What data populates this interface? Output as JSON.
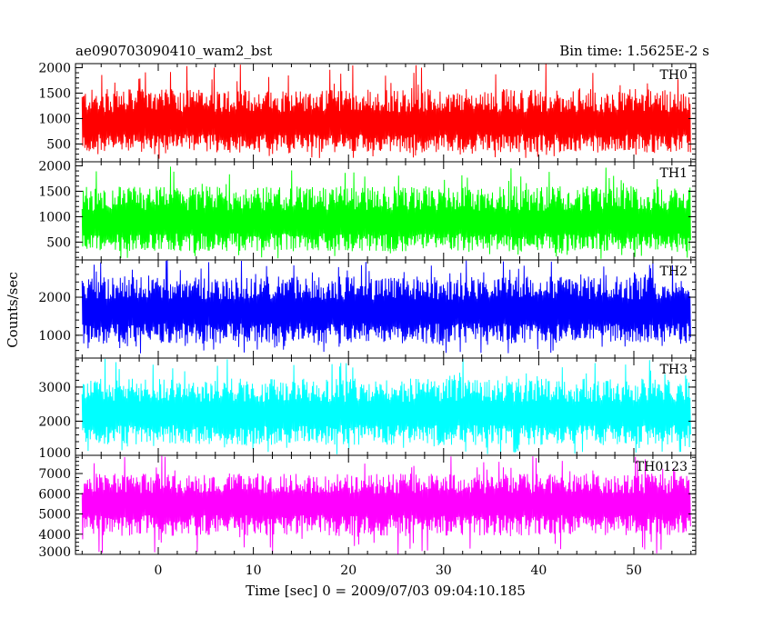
{
  "chart_data": {
    "type": "line",
    "title": "ae090703090410_wam2_bst",
    "bin_time_label": "Bin time: 1.5625E-2 s",
    "xlabel": "Time [sec] 0 = 2009/07/03 09:04:10.185",
    "ylabel": "Counts/sec",
    "xlim": [
      -8.7,
      56.5
    ],
    "x_ticks": [
      0,
      10,
      20,
      30,
      40,
      50
    ],
    "x_tick_labels": [
      "0",
      "10",
      "20",
      "30",
      "40",
      "50"
    ],
    "x_data_range": [
      -8,
      56
    ],
    "grid": false,
    "panels": [
      {
        "name": "TH0",
        "color": "#ff0000",
        "ylim": [
          150,
          2080
        ],
        "y_ticks": [
          500,
          1000,
          1500,
          2000
        ],
        "y_tick_labels": [
          "500",
          "1000",
          "1500",
          "2000"
        ],
        "mean": 880,
        "band_low": 330,
        "band_high": 1580,
        "min": 210,
        "max": 2080
      },
      {
        "name": "TH1",
        "color": "#00ff00",
        "ylim": [
          150,
          2080
        ],
        "y_ticks": [
          500,
          1000,
          1500,
          2000
        ],
        "y_tick_labels": [
          "500",
          "1000",
          "1500",
          "2000"
        ],
        "mean": 860,
        "band_low": 320,
        "band_high": 1600,
        "min": 170,
        "max": 2000
      },
      {
        "name": "TH2",
        "color": "#0000ff",
        "ylim": [
          400,
          2980
        ],
        "y_ticks": [
          1000,
          2000
        ],
        "y_tick_labels": [
          "1000",
          "2000"
        ],
        "mean": 1600,
        "band_low": 780,
        "band_high": 2550,
        "min": 520,
        "max": 2980
      },
      {
        "name": "TH3",
        "color": "#00ffff",
        "ylim": [
          1000,
          3850
        ],
        "y_ticks": [
          1000,
          2000,
          3000
        ],
        "y_tick_labels": [
          "1000",
          "2000",
          "3000"
        ],
        "mean": 2200,
        "band_low": 1300,
        "band_high": 3250,
        "min": 1030,
        "max": 3850
      },
      {
        "name": "TH0123",
        "color": "#ff00ff",
        "ylim": [
          3000,
          7900
        ],
        "y_ticks": [
          3000,
          4000,
          5000,
          6000,
          7000
        ],
        "y_tick_labels": [
          "3000",
          "4000",
          "5000",
          "6000",
          "7000"
        ],
        "mean": 5500,
        "band_low": 3900,
        "band_high": 7000,
        "min": 3000,
        "max": 7900
      }
    ]
  }
}
